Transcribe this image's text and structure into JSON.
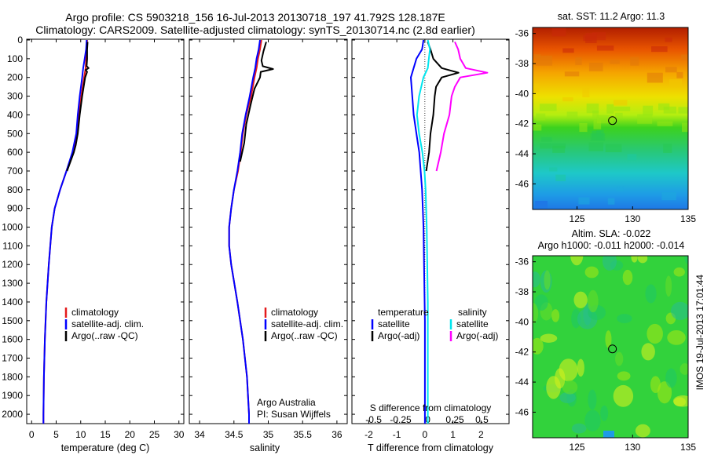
{
  "header": {
    "line1": "Argo profile: CS 5903218_156 16-Jul-2013 20130718_197 41.792S 128.187E",
    "line2": "Climatology: CARS2009. Satellite-adjusted climatology: synTS_20130714.nc (2.8d earlier)"
  },
  "colors": {
    "climatology": "#e31a1c",
    "satellite": "#0000ff",
    "argo": "#000000",
    "sal_satellite": "#00e5ee",
    "sal_argo": "#ff00ff"
  },
  "depth_ticks": [
    0,
    100,
    200,
    300,
    400,
    500,
    600,
    700,
    800,
    900,
    1000,
    1100,
    1200,
    1300,
    1400,
    1500,
    1600,
    1700,
    1800,
    1900,
    2000
  ],
  "panels": {
    "temperature": {
      "xlabel": "temperature (deg C)",
      "xticks": [
        "0",
        "5",
        "10",
        "15",
        "20",
        "25",
        "30"
      ],
      "legend": [
        "climatology",
        "satellite-adj. clim.",
        "Argo(..raw -QC)"
      ]
    },
    "salinity": {
      "xlabel": "salinity",
      "xticks": [
        "34",
        "34.5",
        "35",
        "35.5",
        "36"
      ],
      "legend": [
        "climatology",
        "satellite-adj. clim.",
        "Argo(..raw -QC)"
      ],
      "credit1": "Argo Australia",
      "credit2": "PI: Susan Wijffels"
    },
    "difference": {
      "xlabel": "T difference from climatology",
      "top_label": "S difference from climatology",
      "xticks_T": [
        "-2",
        "-1",
        "0",
        "1",
        "2"
      ],
      "xticks_S": [
        "-0.5",
        "-0.25",
        "0",
        "0.25",
        "0.5"
      ],
      "legend_head_T": "temperature",
      "legend_head_S": "salinity",
      "legend_T": [
        "satellite",
        "Argo(-adj)"
      ],
      "legend_S": [
        "satellite",
        "Argo(-adj)"
      ]
    }
  },
  "maps": {
    "sst": {
      "title": "sat. SST: 11.2 Argo: 11.3",
      "yticks": [
        "-36",
        "-38",
        "-40",
        "-42",
        "-44",
        "-46"
      ],
      "xticks": [
        "125",
        "130",
        "135"
      ]
    },
    "sla": {
      "title1": "Altim. SLA: -0.022",
      "title2": "Argo h1000: -0.011 h2000: -0.014",
      "yticks": [
        "-36",
        "-38",
        "-40",
        "-42",
        "-44",
        "-46"
      ],
      "xticks": [
        "125",
        "130",
        "135"
      ]
    },
    "float_position": {
      "lon": 128.187,
      "lat": -41.792
    }
  },
  "stamp": "IMOS 19-Jul-2013 17:01:44",
  "chart_data": [
    {
      "type": "line",
      "xlabel": "temperature (deg C)",
      "xlim": [
        -1,
        31
      ],
      "ylim": [
        2050,
        0
      ],
      "series": [
        {
          "name": "climatology",
          "depth": [
            0,
            50,
            100,
            150,
            200,
            300,
            400,
            500,
            600,
            700,
            800,
            900,
            1000,
            1200,
            1400,
            1600,
            1800,
            2000,
            2050
          ],
          "values": [
            11.3,
            11.2,
            11.1,
            11.0,
            10.7,
            10.1,
            9.6,
            9.2,
            8.4,
            7.1,
            5.8,
            4.7,
            4.1,
            3.5,
            3.0,
            2.7,
            2.5,
            2.4,
            2.4
          ]
        },
        {
          "name": "satellite-adj. clim.",
          "depth": [
            0,
            50,
            100,
            150,
            200,
            300,
            400,
            500,
            600,
            700,
            800,
            900,
            1000,
            1200,
            1400,
            1600,
            1800,
            2000,
            2050
          ],
          "values": [
            11.2,
            11.1,
            10.8,
            10.5,
            10.3,
            9.8,
            9.4,
            9.1,
            8.3,
            7.1,
            5.8,
            4.7,
            4.1,
            3.5,
            3.0,
            2.7,
            2.5,
            2.4,
            2.4
          ]
        },
        {
          "name": "Argo(..raw -QC)",
          "depth": [
            10,
            50,
            100,
            140,
            150,
            160,
            170,
            200,
            300,
            400,
            500,
            560,
            600,
            700
          ],
          "values": [
            11.4,
            11.3,
            11.3,
            11.2,
            11.6,
            11.0,
            11.3,
            10.9,
            10.3,
            9.8,
            9.4,
            9.0,
            8.6,
            7.2
          ]
        }
      ]
    },
    {
      "type": "line",
      "xlabel": "salinity",
      "xlim": [
        33.85,
        36.15
      ],
      "ylim": [
        2050,
        0
      ],
      "series": [
        {
          "name": "climatology",
          "depth": [
            0,
            50,
            100,
            150,
            200,
            300,
            400,
            500,
            600,
            700,
            800,
            900,
            1000,
            1100,
            1200,
            1400,
            1600,
            1800,
            2000,
            2050
          ],
          "values": [
            34.9,
            34.88,
            34.85,
            34.83,
            34.8,
            34.75,
            34.68,
            34.63,
            34.6,
            34.56,
            34.5,
            34.46,
            34.43,
            34.43,
            34.46,
            34.55,
            34.63,
            34.69,
            34.72,
            34.72
          ]
        },
        {
          "name": "satellite-adj. clim.",
          "depth": [
            0,
            50,
            100,
            150,
            200,
            300,
            400,
            500,
            600,
            700,
            800,
            900,
            1000,
            1100,
            1200,
            1400,
            1600,
            1800,
            2000,
            2050
          ],
          "values": [
            34.88,
            34.86,
            34.83,
            34.81,
            34.78,
            34.73,
            34.67,
            34.62,
            34.59,
            34.55,
            34.5,
            34.46,
            34.43,
            34.43,
            34.46,
            34.55,
            34.63,
            34.69,
            34.72,
            34.72
          ]
        },
        {
          "name": "Argo(..raw -QC)",
          "depth": [
            10,
            60,
            110,
            140,
            155,
            170,
            200,
            260,
            350,
            450,
            550,
            600,
            650
          ],
          "values": [
            34.97,
            34.93,
            34.9,
            34.92,
            35.07,
            34.89,
            34.88,
            34.8,
            34.74,
            34.68,
            34.65,
            34.62,
            34.59
          ]
        }
      ]
    },
    {
      "type": "line",
      "xlabel": "T difference from climatology",
      "xlim": [
        -2.6,
        3.0
      ],
      "ylim": [
        2050,
        0
      ],
      "series": [
        {
          "name": "temperature satellite",
          "depth": [
            0,
            50,
            100,
            200,
            300,
            400,
            500,
            600,
            700,
            800,
            1000,
            1200,
            1500,
            1800,
            2000,
            2050
          ],
          "values": [
            -0.05,
            -0.1,
            -0.3,
            -0.5,
            -0.45,
            -0.4,
            -0.3,
            -0.2,
            -0.15,
            -0.1,
            -0.05,
            -0.03,
            0,
            0,
            0,
            0
          ]
        },
        {
          "name": "temperature Argo(-adj)",
          "depth": [
            10,
            50,
            100,
            150,
            175,
            200,
            250,
            300,
            400,
            500,
            600,
            700
          ],
          "values": [
            0.1,
            0.2,
            0.3,
            0.6,
            1.2,
            0.6,
            0.4,
            0.35,
            0.3,
            0.2,
            0.15,
            0.05
          ]
        },
        {
          "name": "salinity satellite",
          "depth": [
            0,
            50,
            100,
            150,
            200,
            300,
            400,
            500,
            600,
            700,
            800,
            1000,
            1400,
            1800,
            2050
          ],
          "values": [
            0,
            0.02,
            0.01,
            0,
            -0.04,
            -0.08,
            -0.1,
            -0.08,
            -0.05,
            -0.03,
            -0.02,
            -0.01,
            0,
            0,
            0
          ]
        },
        {
          "name": "salinity Argo(-adj)",
          "depth": [
            10,
            50,
            100,
            150,
            175,
            200,
            250,
            300,
            400,
            500,
            600,
            700
          ],
          "values": [
            0.25,
            0.28,
            0.3,
            0.35,
            0.55,
            0.3,
            0.25,
            0.22,
            0.2,
            0.15,
            0.12,
            0.08
          ]
        }
      ]
    }
  ]
}
